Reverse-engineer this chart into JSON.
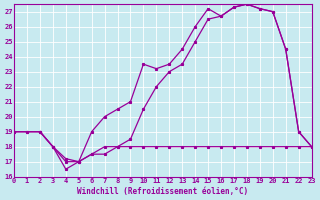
{
  "xlabel": "Windchill (Refroidissement éolien,°C)",
  "bg_color": "#c8eaf0",
  "grid_color": "#ffffff",
  "line_color": "#990099",
  "xlim": [
    0,
    23
  ],
  "ylim": [
    16,
    27.5
  ],
  "xticks": [
    0,
    1,
    2,
    3,
    4,
    5,
    6,
    7,
    8,
    9,
    10,
    11,
    12,
    13,
    14,
    15,
    16,
    17,
    18,
    19,
    20,
    21,
    22,
    23
  ],
  "yticks": [
    16,
    17,
    18,
    19,
    20,
    21,
    22,
    23,
    24,
    25,
    26,
    27
  ],
  "line1_x": [
    0,
    1,
    2,
    3,
    4,
    5,
    6,
    7,
    8,
    9,
    10,
    11,
    12,
    13,
    14,
    15,
    16,
    17,
    18,
    19,
    20,
    21,
    22,
    23
  ],
  "line1_y": [
    19,
    19,
    19,
    18,
    17,
    17,
    19,
    20,
    20.5,
    21,
    23.5,
    23.2,
    23.5,
    24.5,
    26,
    27.2,
    26.7,
    27.3,
    27.5,
    27.2,
    27,
    24.5,
    19,
    18
  ],
  "line2_x": [
    0,
    1,
    2,
    3,
    4,
    5,
    6,
    7,
    8,
    9,
    10,
    11,
    12,
    13,
    14,
    15,
    16,
    17,
    18,
    19,
    20,
    21,
    22,
    23
  ],
  "line2_y": [
    19,
    19,
    19,
    18,
    16.5,
    17,
    17.5,
    18,
    18,
    18.5,
    20.5,
    22,
    23,
    23.5,
    25,
    26.5,
    26.7,
    27.3,
    27.5,
    27.2,
    27,
    24.5,
    19,
    18
  ],
  "line3_x": [
    0,
    2,
    3,
    4,
    5,
    6,
    7,
    8,
    9,
    10,
    11,
    12,
    13,
    14,
    15,
    16,
    17,
    18,
    19,
    20,
    21,
    22,
    23
  ],
  "line3_y": [
    19,
    19,
    18,
    17.2,
    17,
    17.5,
    17.5,
    18,
    18,
    18,
    18,
    18,
    18,
    18,
    18,
    18,
    18,
    18,
    18,
    18,
    18,
    18,
    18
  ]
}
